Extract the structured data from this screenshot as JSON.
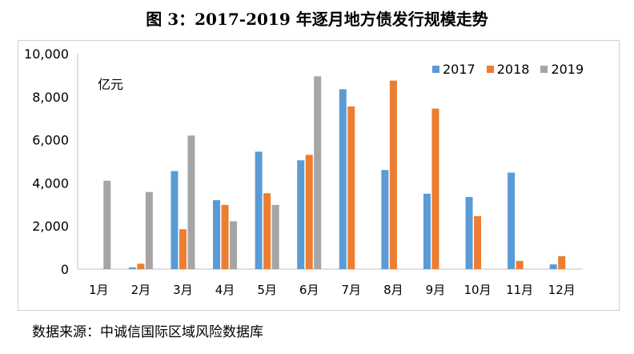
{
  "title": "图 3：2017-2019 年逐月地方债发行规模走势",
  "source": "数据来源：中诚信国际区域风险数据库",
  "chart_data": {
    "type": "bar",
    "unit_label": "亿元",
    "categories": [
      "1月",
      "2月",
      "3月",
      "4月",
      "5月",
      "6月",
      "7月",
      "8月",
      "9月",
      "10月",
      "11月",
      "12月"
    ],
    "series": [
      {
        "name": "2017",
        "color": "#5B9BD5",
        "values": [
          0,
          80,
          4550,
          3200,
          5450,
          5050,
          8350,
          4600,
          3500,
          3350,
          4480,
          220
        ]
      },
      {
        "name": "2018",
        "color": "#ED7D31",
        "values": [
          0,
          250,
          1850,
          2980,
          3520,
          5300,
          7550,
          8750,
          7450,
          2460,
          380,
          600
        ]
      },
      {
        "name": "2019",
        "color": "#A5A5A5",
        "values": [
          4100,
          3580,
          6200,
          2220,
          2980,
          8950,
          0,
          0,
          0,
          0,
          0,
          0
        ]
      }
    ],
    "yticks": [
      "0",
      "2,000",
      "4,000",
      "6,000",
      "8,000",
      "10,000"
    ],
    "ylim": [
      0,
      10000
    ],
    "grid": false,
    "legend_position": "top-right"
  }
}
